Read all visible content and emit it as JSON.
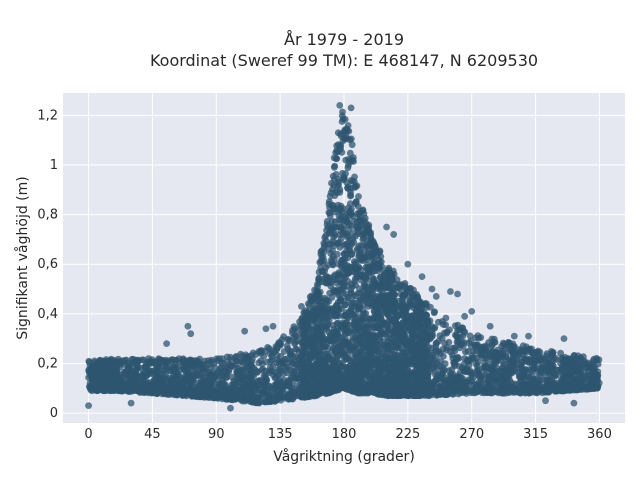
{
  "chart_data": {
    "type": "scatter",
    "title": "År 1979 - 2019",
    "subtitle": "Koordinat (Sweref 99 TM): E 468147, N 6209530",
    "xlabel": "Vågriktning (grader)",
    "ylabel": "Signifikant våghöjd (m)",
    "xlim": [
      -18,
      378
    ],
    "ylim": [
      -0.04,
      1.29
    ],
    "xticks": [
      0,
      45,
      90,
      135,
      180,
      225,
      270,
      315,
      360
    ],
    "xtick_labels": [
      "0",
      "45",
      "90",
      "135",
      "180",
      "225",
      "270",
      "315",
      "360"
    ],
    "yticks": [
      0,
      0.2,
      0.4,
      0.6,
      0.8,
      1,
      1.2
    ],
    "ytick_labels": [
      "0",
      "0,2",
      "0,4",
      "0,6",
      "0,8",
      "1",
      "1,2"
    ],
    "grid": true,
    "marker_color": "#2f5670",
    "plot_background": "#e5e8f0",
    "grid_color": "#ffffff",
    "envelope": {
      "x": [
        0,
        20,
        45,
        90,
        120,
        135,
        150,
        160,
        170,
        175,
        178,
        180,
        185,
        190,
        200,
        210,
        225,
        240,
        270,
        315,
        360
      ],
      "y_upper": [
        0.21,
        0.22,
        0.22,
        0.22,
        0.25,
        0.3,
        0.39,
        0.52,
        0.88,
        1.12,
        1.21,
        1.22,
        1.12,
        0.88,
        0.72,
        0.6,
        0.52,
        0.43,
        0.32,
        0.26,
        0.22
      ],
      "y_lower": [
        0.09,
        0.09,
        0.08,
        0.06,
        0.04,
        0.05,
        0.06,
        0.07,
        0.08,
        0.09,
        0.1,
        0.1,
        0.09,
        0.08,
        0.08,
        0.07,
        0.07,
        0.07,
        0.08,
        0.08,
        0.1
      ]
    },
    "outliers": [
      {
        "x": 0,
        "y": 0.03
      },
      {
        "x": 30,
        "y": 0.04
      },
      {
        "x": 55,
        "y": 0.28
      },
      {
        "x": 70,
        "y": 0.35
      },
      {
        "x": 72,
        "y": 0.32
      },
      {
        "x": 100,
        "y": 0.02
      },
      {
        "x": 110,
        "y": 0.33
      },
      {
        "x": 125,
        "y": 0.34
      },
      {
        "x": 130,
        "y": 0.35
      },
      {
        "x": 150,
        "y": 0.43
      },
      {
        "x": 210,
        "y": 0.75
      },
      {
        "x": 215,
        "y": 0.72
      },
      {
        "x": 225,
        "y": 0.6
      },
      {
        "x": 235,
        "y": 0.55
      },
      {
        "x": 242,
        "y": 0.5
      },
      {
        "x": 245,
        "y": 0.47
      },
      {
        "x": 255,
        "y": 0.49
      },
      {
        "x": 260,
        "y": 0.48
      },
      {
        "x": 265,
        "y": 0.39
      },
      {
        "x": 270,
        "y": 0.41
      },
      {
        "x": 283,
        "y": 0.35
      },
      {
        "x": 300,
        "y": 0.31
      },
      {
        "x": 310,
        "y": 0.31
      },
      {
        "x": 335,
        "y": 0.3
      },
      {
        "x": 322,
        "y": 0.05
      },
      {
        "x": 342,
        "y": 0.04
      },
      {
        "x": 185,
        "y": 1.23
      },
      {
        "x": 177,
        "y": 1.24
      }
    ]
  }
}
